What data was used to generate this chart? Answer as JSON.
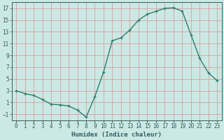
{
  "x": [
    0,
    1,
    2,
    3,
    4,
    5,
    6,
    7,
    8,
    9,
    10,
    11,
    12,
    13,
    14,
    15,
    16,
    17,
    18,
    19,
    20,
    21,
    22,
    23
  ],
  "y": [
    3.0,
    2.5,
    2.2,
    1.5,
    0.7,
    0.6,
    0.4,
    -0.3,
    -1.5,
    2.0,
    6.2,
    11.5,
    12.0,
    13.3,
    15.0,
    16.0,
    16.5,
    17.0,
    17.1,
    16.5,
    12.5,
    8.5,
    6.0,
    4.7
  ],
  "title": "",
  "xlabel": "Humidex (Indice chaleur)",
  "ylabel": "",
  "xlim": [
    -0.5,
    23.5
  ],
  "ylim": [
    -2.0,
    18.0
  ],
  "yticks": [
    -1,
    1,
    3,
    5,
    7,
    9,
    11,
    13,
    15,
    17
  ],
  "xtick_labels": [
    "0",
    "1",
    "2",
    "3",
    "4",
    "5",
    "6",
    "7",
    "8",
    "9",
    "10",
    "11",
    "12",
    "13",
    "14",
    "15",
    "16",
    "17",
    "18",
    "19",
    "20",
    "21",
    "22",
    "23"
  ],
  "line_color": "#2d7d6e",
  "marker": "+",
  "bg_color": "#cce8e4",
  "grid_color": "#d4a0a0",
  "font_color": "#2d6060",
  "tick_fontsize": 5.5,
  "xlabel_fontsize": 6.5,
  "line_width": 1.0,
  "marker_size": 3.5
}
